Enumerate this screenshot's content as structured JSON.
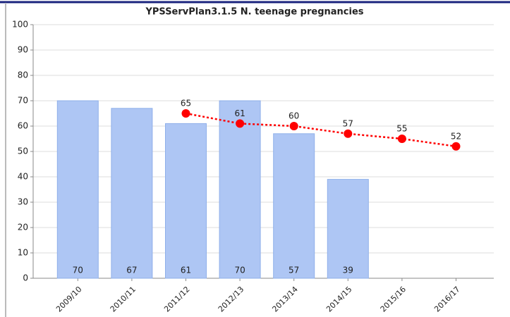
{
  "chart_data": {
    "type": "bar",
    "title": "YPSServPlan3.1.5 N. teenage pregnancies",
    "categories": [
      "2009/10",
      "2010/11",
      "2011/12",
      "2012/13",
      "2013/14",
      "2014/15",
      "2015/16",
      "2016/17"
    ],
    "series": [
      {
        "type": "bar",
        "color": "#aec6f4",
        "values": [
          70,
          67,
          61,
          70,
          57,
          39,
          null,
          null
        ]
      },
      {
        "type": "line",
        "color": "#ff0000",
        "values": [
          null,
          null,
          65,
          61,
          60,
          57,
          55,
          52
        ]
      }
    ],
    "ylim": [
      0,
      100
    ],
    "yticks": [
      0,
      10,
      20,
      30,
      40,
      50,
      60,
      70,
      80,
      90,
      100
    ],
    "grid": true
  }
}
